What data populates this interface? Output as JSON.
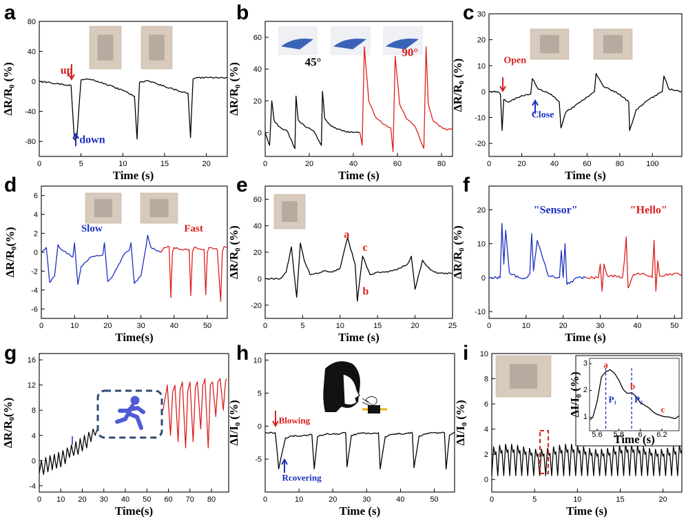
{
  "chart_data": [
    {
      "panel": "a",
      "type": "line",
      "xlabel": "Time (s)",
      "ylabel": "ΔR/R₀ (%)",
      "xlim": [
        0,
        22.5
      ],
      "ylim": [
        -100,
        80
      ],
      "xticks": [
        0,
        5,
        10,
        15,
        20
      ],
      "yticks": [
        -80,
        -40,
        0,
        40,
        80
      ],
      "series": [
        {
          "color": "#000000",
          "x": [
            0,
            1,
            2,
            3.8,
            4.2,
            4.5,
            5,
            6,
            7,
            8,
            10,
            11.4,
            11.7,
            12,
            13,
            14,
            16,
            17.8,
            18.1,
            18.4,
            19,
            21,
            22.5
          ],
          "y": [
            0,
            -1,
            -3,
            -5,
            -78,
            -75,
            2,
            3,
            0,
            -4,
            -12,
            -20,
            -77,
            -1,
            1,
            -3,
            -10,
            -16,
            -75,
            3,
            5,
            5,
            5
          ]
        }
      ],
      "annotations": [
        {
          "text": "up",
          "color": "#d62020",
          "x": 4,
          "y": 10
        },
        {
          "text": "down",
          "color": "#1b2fbf",
          "x": 4.8,
          "y": -82
        }
      ]
    },
    {
      "panel": "b",
      "type": "line",
      "xlabel": "Time (s)",
      "ylabel": "ΔR/R₀ (%)",
      "xlim": [
        0,
        85
      ],
      "ylim": [
        -15,
        70
      ],
      "xticks": [
        0,
        20,
        40,
        60,
        80
      ],
      "yticks": [
        0,
        20,
        40,
        60
      ],
      "series": [
        {
          "color": "#000000",
          "x": [
            0,
            2,
            3,
            4,
            6,
            10,
            13.5,
            14,
            15,
            18,
            22,
            25.5,
            26,
            27,
            30,
            35,
            40,
            43
          ],
          "y": [
            0,
            -8,
            20,
            8,
            4,
            1,
            -10,
            23,
            8,
            4,
            1,
            -8,
            26,
            9,
            4,
            1,
            0,
            0
          ]
        },
        {
          "color": "#dc1e1e",
          "x": [
            43,
            44,
            45,
            47,
            50,
            54,
            57,
            58,
            59,
            61,
            64,
            68,
            72,
            73,
            74,
            76,
            79,
            82,
            85
          ],
          "y": [
            0,
            -8,
            54,
            20,
            10,
            5,
            3,
            -12,
            48,
            18,
            9,
            4,
            -10,
            54,
            18,
            8,
            4,
            2,
            2
          ]
        }
      ],
      "annotations": [
        {
          "text": "45°",
          "color": "#000000",
          "x": 18,
          "y": 42
        },
        {
          "text": "90°",
          "color": "#dc1e1e",
          "x": 62,
          "y": 48
        }
      ]
    },
    {
      "panel": "c",
      "type": "line",
      "xlabel": "Time (s)",
      "ylabel": "ΔR/R₀ (%)",
      "xlim": [
        0,
        118
      ],
      "ylim": [
        -25,
        30
      ],
      "xticks": [
        0,
        20,
        40,
        60,
        80,
        100
      ],
      "yticks": [
        -20,
        -10,
        0,
        10,
        20,
        30
      ],
      "series": [
        {
          "color": "#000000",
          "x": [
            0,
            5,
            7,
            8,
            9,
            12,
            20,
            25.5,
            26.5,
            30,
            38,
            43,
            44,
            47,
            56,
            64.5,
            65.5,
            70,
            80,
            85.5,
            86,
            90,
            98,
            106,
            107,
            110,
            118
          ],
          "y": [
            0,
            0,
            -1,
            -15,
            -3,
            -4,
            -1.5,
            -1,
            5,
            1,
            -1,
            -4,
            -14,
            -8,
            -4,
            0,
            7,
            2,
            -1,
            -4,
            -15,
            -7,
            -3,
            0,
            6,
            1,
            0
          ]
        }
      ],
      "annotations": [
        {
          "text": "Open",
          "color": "#d62020",
          "x": 9,
          "y": 11
        },
        {
          "text": "Close",
          "color": "#1b2fbf",
          "x": 26,
          "y": -10
        }
      ]
    },
    {
      "panel": "d",
      "type": "line",
      "xlabel": "Time(s)",
      "ylabel": "ΔR/R₀(%)",
      "xlim": [
        0,
        56
      ],
      "ylim": [
        -7,
        7
      ],
      "xticks": [
        0,
        10,
        20,
        30,
        40,
        50
      ],
      "yticks": [
        -6,
        -4,
        -2,
        0,
        2,
        4,
        6
      ],
      "series": [
        {
          "color": "#1b2fbf",
          "x": [
            0,
            1.5,
            2.5,
            4,
            5,
            6,
            9.5,
            10,
            11,
            12,
            15,
            18.5,
            19,
            20,
            21.5,
            25,
            26.5,
            27,
            28,
            30,
            31.5,
            32,
            33,
            36
          ],
          "y": [
            0,
            0.5,
            -3.2,
            -2.5,
            0.8,
            0.3,
            -0.5,
            1,
            -3.4,
            -1.5,
            -0.5,
            -0.3,
            1,
            -3.1,
            -2.5,
            -0.2,
            0.2,
            1,
            -3.3,
            -2.5,
            0.5,
            1.8,
            0.5,
            0
          ]
        },
        {
          "color": "#dc1e1e",
          "x": [
            36,
            37,
            38.5,
            39,
            39.5,
            40,
            42,
            44.5,
            45,
            45.5,
            46,
            49,
            49.5,
            50,
            50.5,
            53,
            54,
            54.5,
            55,
            56
          ],
          "y": [
            0,
            0.5,
            0.6,
            -4.8,
            0,
            0.5,
            0.3,
            0.3,
            -4.6,
            0,
            0.5,
            0.3,
            -4.5,
            0,
            0.5,
            0.3,
            -5.2,
            0,
            0.6,
            0.5
          ]
        }
      ],
      "annotations": [
        {
          "text": "Slow",
          "color": "#1b2fbf",
          "x": 12,
          "y": 2.2
        },
        {
          "text": "Fast",
          "color": "#dc1e1e",
          "x": 43,
          "y": 2.2
        }
      ]
    },
    {
      "panel": "e",
      "type": "line",
      "xlabel": "Time (s)",
      "ylabel": "ΔR/R₀ (%)",
      "xlim": [
        0,
        25
      ],
      "ylim": [
        -30,
        70
      ],
      "xticks": [
        0,
        5,
        10,
        15,
        20,
        25
      ],
      "yticks": [
        -20,
        0,
        20,
        40,
        60
      ],
      "series": [
        {
          "color": "#000000",
          "x": [
            0,
            1,
            2,
            2.8,
            3.5,
            4.2,
            4.7,
            5.2,
            6,
            7,
            8,
            9,
            10,
            11,
            12,
            12.3,
            13,
            14,
            15,
            16,
            17,
            18,
            19,
            19.5,
            20,
            21,
            22,
            23,
            25
          ],
          "y": [
            0,
            0,
            0,
            5,
            24,
            -14,
            27,
            14,
            3,
            4,
            6,
            5,
            8,
            31,
            11,
            -17,
            17,
            3,
            5,
            5,
            6,
            8,
            11,
            17,
            -8,
            14,
            7,
            4,
            4
          ]
        }
      ],
      "annotations": [
        {
          "text": "a",
          "color": "#dc1e1e",
          "x": 10.5,
          "y": 31
        },
        {
          "text": "b",
          "color": "#dc1e1e",
          "x": 13,
          "y": -12
        },
        {
          "text": "c",
          "color": "#dc1e1e",
          "x": 13,
          "y": 21
        }
      ]
    },
    {
      "panel": "f",
      "type": "line",
      "xlabel": "Time (s)",
      "ylabel": "ΔR/R₀ (%)",
      "xlim": [
        0,
        52
      ],
      "ylim": [
        -12,
        27
      ],
      "xticks": [
        0,
        10,
        20,
        30,
        40,
        50
      ],
      "yticks": [
        -10,
        0,
        10,
        20
      ],
      "series": [
        {
          "color": "#1b2fbf",
          "x": [
            0,
            2,
            3,
            3.5,
            4,
            4.5,
            5.5,
            8,
            10,
            11,
            11.5,
            12,
            13,
            16,
            19,
            19.5,
            20,
            20.5,
            21,
            24,
            26
          ],
          "y": [
            0,
            0,
            0,
            16,
            4,
            14,
            1.5,
            0,
            0,
            1,
            13,
            2,
            11,
            0.5,
            0,
            8,
            0,
            10,
            -2,
            0,
            0
          ]
        },
        {
          "color": "#dc1e1e",
          "x": [
            26,
            28,
            29.5,
            30,
            30.5,
            31,
            32,
            35,
            36,
            36.5,
            37,
            37.5,
            39,
            42,
            44,
            44.5,
            45,
            45.5,
            46,
            49,
            52
          ],
          "y": [
            0,
            0,
            0,
            4,
            -4,
            4,
            0.5,
            0.5,
            0,
            5,
            12,
            -3,
            1,
            1,
            0,
            11,
            -4,
            5,
            0.5,
            1,
            1
          ]
        }
      ],
      "annotations": [
        {
          "text": "\"Sensor\"",
          "color": "#1b2fbf",
          "x": 12,
          "y": 19
        },
        {
          "text": "\"Hello\"",
          "color": "#dc1e1e",
          "x": 38,
          "y": 19
        }
      ]
    },
    {
      "panel": "g",
      "type": "line",
      "xlabel": "Time(s)",
      "ylabel": "ΔR/R₀(%)",
      "xlim": [
        0,
        88
      ],
      "ylim": [
        -5,
        17
      ],
      "xticks": [
        0,
        10,
        20,
        30,
        40,
        50,
        60,
        70,
        80
      ],
      "yticks": [
        -4,
        0,
        4,
        8,
        12,
        16
      ],
      "series": [
        {
          "color": "#000000",
          "x": [
            0,
            1,
            2,
            3,
            4,
            5,
            6,
            7,
            8,
            9,
            10,
            11,
            12,
            13,
            14,
            15,
            16,
            17,
            18,
            19,
            20,
            21,
            22,
            23,
            24,
            25,
            26,
            27
          ],
          "y": [
            -2,
            0,
            -2.2,
            0.5,
            -1.8,
            0.8,
            -1.5,
            1,
            -1.2,
            1.3,
            -1,
            1.6,
            -0.5,
            2,
            0.5,
            2.5,
            0.8,
            3,
            1,
            3.5,
            1.5,
            4,
            2,
            4.5,
            3,
            5,
            4,
            5
          ]
        },
        {
          "color": "#dc1e1e",
          "x": [
            57.5,
            58.5,
            59.5,
            61,
            62,
            63,
            64.5,
            65.5,
            66.5,
            68,
            69,
            70,
            71.5,
            72.5,
            73.5,
            75,
            76,
            77,
            78.5,
            79.5,
            80.5,
            82,
            83,
            84,
            85.5,
            86.5,
            87
          ],
          "y": [
            8,
            10,
            12,
            4,
            11,
            12,
            3,
            11.5,
            12.5,
            2,
            11,
            12.5,
            3,
            11.5,
            12.5,
            5,
            12,
            13,
            2,
            12,
            12.5,
            7,
            12.5,
            13,
            8,
            12.5,
            13
          ]
        }
      ],
      "annotations": [
        {
          "text": "",
          "color": "#1b2fbf",
          "x": 15,
          "y": 2.5
        }
      ]
    },
    {
      "panel": "h",
      "type": "line",
      "xlabel": "Time (s)",
      "ylabel": "ΔI/I₀ (%)",
      "xlim": [
        0,
        56
      ],
      "ylim": [
        -10,
        11
      ],
      "xticks": [
        0,
        10,
        20,
        30,
        40,
        50
      ],
      "yticks": [
        -5,
        0,
        5,
        10
      ],
      "series": [
        {
          "color": "#000000",
          "x": [
            0,
            2,
            3,
            4,
            5,
            6,
            8,
            12,
            13.8,
            14.5,
            15.5,
            18,
            22,
            23.8,
            24.2,
            25.5,
            28,
            32,
            33.5,
            34,
            35.5,
            38,
            42,
            43.5,
            44,
            45.5,
            48,
            52,
            53,
            53.5,
            54.5,
            56
          ],
          "y": [
            -1,
            -1,
            -1,
            -6.5,
            -4,
            -1.8,
            -1.5,
            -1.4,
            -1.3,
            -6.5,
            -1.6,
            -1.2,
            -1.2,
            -1,
            -6.2,
            -1.4,
            -1.1,
            -1.1,
            -1,
            -6.5,
            -1.6,
            -1.2,
            -1.1,
            -1,
            -6.3,
            -1.5,
            -1.1,
            -1,
            -1,
            -6.5,
            -1.4,
            -1
          ]
        }
      ],
      "annotations": [
        {
          "text": "Blowing",
          "color": "#dc1e1e",
          "x": 4,
          "y": 0.4
        },
        {
          "text": "Rcovering",
          "color": "#1b2fbf",
          "x": 5,
          "y": -8.3
        }
      ]
    },
    {
      "panel": "i",
      "type": "line",
      "xlabel": "Time (s)",
      "ylabel": "ΔI/I₀ (%)",
      "xlim": [
        0,
        22.2
      ],
      "ylim": [
        -1,
        10
      ],
      "xticks": [
        0,
        5,
        10,
        15,
        20
      ],
      "yticks": [
        0,
        2,
        4,
        6,
        8,
        10
      ],
      "series": [
        {
          "color": "#000000",
          "period": 0.7,
          "values": [
            0.3,
            2.6,
            2.0,
            2.2
          ]
        }
      ],
      "inset": {
        "xlabel": "Time (s)",
        "ylabel": "ΔI/I₀ (%)",
        "xlim": [
          5.53,
          6.36
        ],
        "ylim": [
          0.5,
          3.2
        ],
        "xticks": [
          5.6,
          5.8,
          6.0,
          6.2
        ],
        "yticks": [
          1,
          2,
          3
        ],
        "series": [
          {
            "color": "#000000",
            "x": [
              5.53,
              5.56,
              5.6,
              5.64,
              5.68,
              5.72,
              5.76,
              5.8,
              5.84,
              5.88,
              5.92,
              5.96,
              6.0,
              6.04,
              6.08,
              6.12,
              6.16,
              6.2,
              6.24,
              6.28,
              6.32,
              6.36
            ],
            "y": [
              0.9,
              1.0,
              1.6,
              2.5,
              2.7,
              2.78,
              2.65,
              2.4,
              2.05,
              1.9,
              1.92,
              1.78,
              1.55,
              1.45,
              1.35,
              1.2,
              1.1,
              1.05,
              1.02,
              1.0,
              0.95,
              1.05
            ]
          }
        ],
        "vlines": [
          {
            "x": 5.68,
            "label": "P₁"
          },
          {
            "x": 5.92,
            "label": "P₂"
          }
        ],
        "annotations": [
          {
            "text": "a",
            "color": "#dc1e1e",
            "x": 5.68,
            "y": 2.85
          },
          {
            "text": "b",
            "color": "#dc1e1e",
            "x": 5.93,
            "y": 2.05
          },
          {
            "text": "c",
            "color": "#dc1e1e",
            "x": 6.21,
            "y": 1.18
          }
        ]
      }
    }
  ]
}
